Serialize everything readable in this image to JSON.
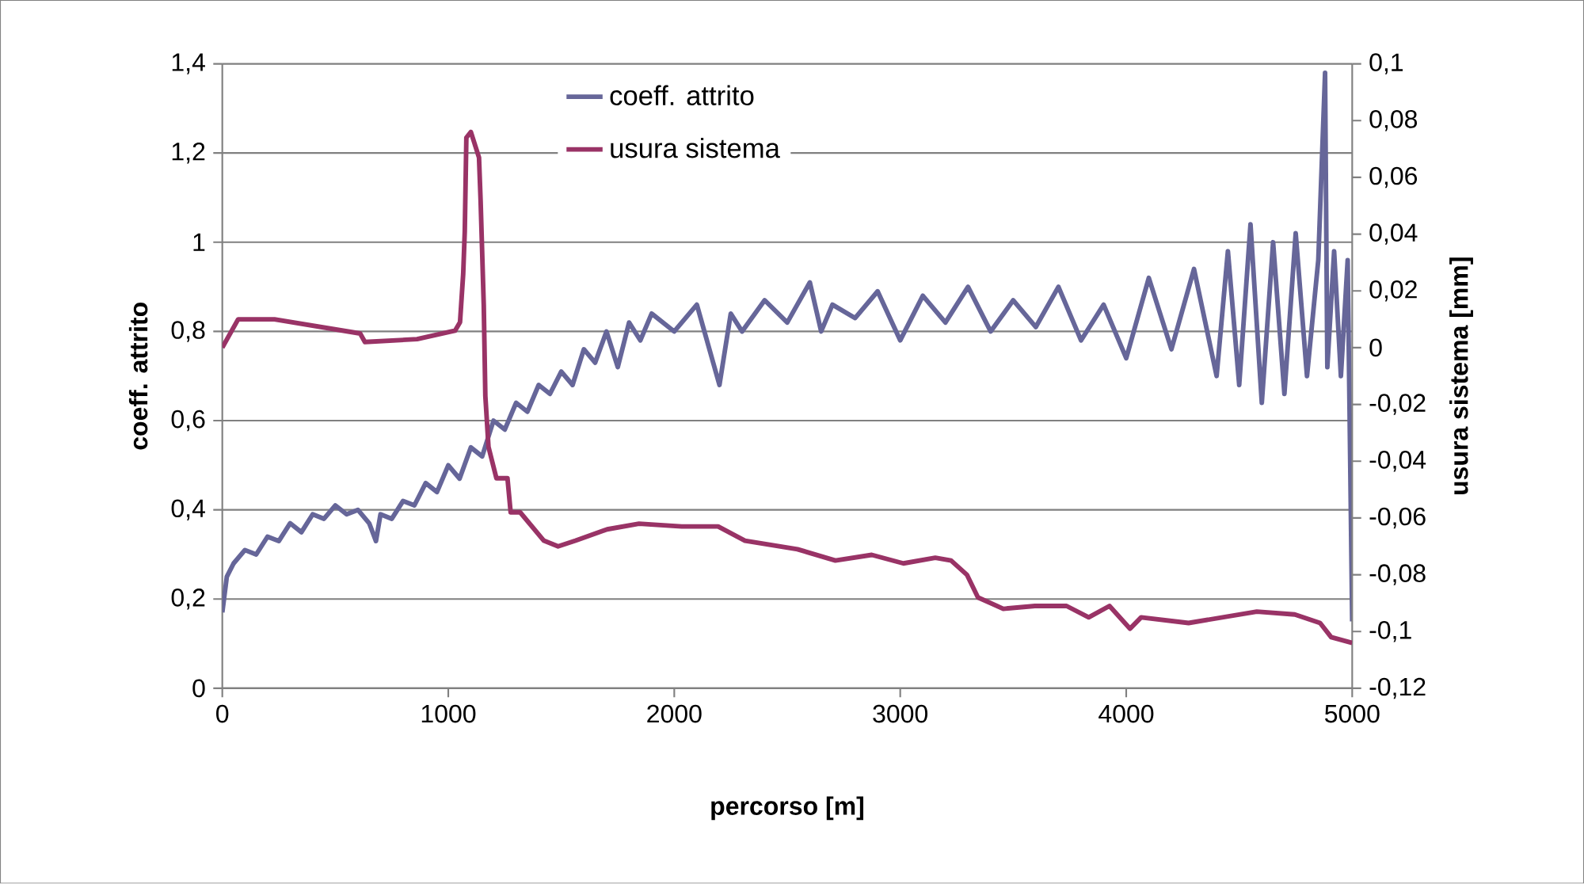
{
  "chart_data": {
    "type": "line",
    "xlabel": "percorso [m]",
    "ylabel": "coeff. attrito",
    "y2label": "usura sistema [mm]",
    "xlim": [
      0,
      5000
    ],
    "xticks": [
      0,
      1000,
      2000,
      3000,
      4000,
      5000
    ],
    "ylim": [
      0,
      1.4
    ],
    "yticks": [
      0,
      {
        "value": 0.2,
        "label": "0,2"
      },
      {
        "value": 0.4,
        "label": "0,4"
      },
      {
        "value": 0.6,
        "label": "0,6"
      },
      {
        "value": 0.8,
        "label": "0,8"
      },
      1,
      {
        "value": 1.2,
        "label": "1,2"
      },
      {
        "value": 1.4,
        "label": "1,4"
      }
    ],
    "y2lim": [
      -0.12,
      0.1
    ],
    "y2ticks": [
      {
        "value": -0.12,
        "label": "-0,12"
      },
      {
        "value": -0.1,
        "label": "-0,1"
      },
      {
        "value": -0.08,
        "label": "-0,08"
      },
      {
        "value": -0.06,
        "label": "-0,06"
      },
      {
        "value": -0.04,
        "label": "-0,04"
      },
      {
        "value": -0.02,
        "label": "-0,02"
      },
      0,
      {
        "value": 0.02,
        "label": "0,02"
      },
      {
        "value": 0.04,
        "label": "0,04"
      },
      {
        "value": 0.06,
        "label": "0,06"
      },
      {
        "value": 0.08,
        "label": "0,08"
      },
      {
        "value": 0.1,
        "label": "0,1"
      }
    ],
    "grid": "y",
    "legend": "top",
    "series": [
      {
        "name": "coeff. attrito",
        "color": "#666699",
        "x": [
          0,
          20,
          50,
          100,
          150,
          200,
          250,
          300,
          350,
          400,
          450,
          500,
          550,
          600,
          650,
          680,
          700,
          750,
          800,
          850,
          900,
          950,
          1000,
          1050,
          1100,
          1150,
          1200,
          1250,
          1300,
          1350,
          1400,
          1450,
          1500,
          1550,
          1600,
          1650,
          1700,
          1750,
          1800,
          1850,
          1900,
          2000,
          2100,
          2200,
          2250,
          2300,
          2400,
          2500,
          2600,
          2650,
          2700,
          2800,
          2900,
          3000,
          3100,
          3200,
          3300,
          3400,
          3500,
          3600,
          3700,
          3800,
          3900,
          4000,
          4100,
          4200,
          4300,
          4400,
          4450,
          4500,
          4550,
          4600,
          4650,
          4700,
          4750,
          4800,
          4850,
          4880,
          4890,
          4920,
          4950,
          4980,
          5000
        ],
        "values": [
          0.17,
          0.25,
          0.28,
          0.31,
          0.3,
          0.34,
          0.33,
          0.37,
          0.35,
          0.39,
          0.38,
          0.41,
          0.39,
          0.4,
          0.37,
          0.33,
          0.39,
          0.38,
          0.42,
          0.41,
          0.46,
          0.44,
          0.5,
          0.47,
          0.54,
          0.52,
          0.6,
          0.58,
          0.64,
          0.62,
          0.68,
          0.66,
          0.71,
          0.68,
          0.76,
          0.73,
          0.8,
          0.72,
          0.82,
          0.78,
          0.84,
          0.8,
          0.86,
          0.68,
          0.84,
          0.8,
          0.87,
          0.82,
          0.91,
          0.8,
          0.86,
          0.83,
          0.89,
          0.78,
          0.88,
          0.82,
          0.9,
          0.8,
          0.87,
          0.81,
          0.9,
          0.78,
          0.86,
          0.74,
          0.92,
          0.76,
          0.94,
          0.7,
          0.98,
          0.68,
          1.04,
          0.64,
          1.0,
          0.66,
          1.02,
          0.7,
          0.96,
          1.38,
          0.72,
          0.98,
          0.7,
          0.96,
          0.15
        ]
      },
      {
        "name": "usura sistema",
        "color": "#993366",
        "axis": "y2",
        "x": [
          0,
          70,
          231,
          610,
          631,
          862,
          1030,
          1052,
          1066,
          1073,
          1080,
          1100,
          1136,
          1143,
          1157,
          1164,
          1178,
          1213,
          1262,
          1276,
          1318,
          1423,
          1486,
          1563,
          1703,
          1844,
          2033,
          2194,
          2313,
          2545,
          2713,
          2874,
          3014,
          3155,
          3225,
          3295,
          3344,
          3456,
          3596,
          3736,
          3834,
          3926,
          4017,
          4066,
          4276,
          4578,
          4746,
          4858,
          4907,
          5000
        ],
        "values": [
          0.0,
          0.01,
          0.01,
          0.005,
          0.002,
          0.003,
          0.006,
          0.009,
          0.026,
          0.041,
          0.074,
          0.076,
          0.067,
          0.052,
          0.015,
          -0.017,
          -0.035,
          -0.046,
          -0.046,
          -0.058,
          -0.058,
          -0.068,
          -0.07,
          -0.068,
          -0.064,
          -0.062,
          -0.063,
          -0.063,
          -0.068,
          -0.071,
          -0.075,
          -0.073,
          -0.076,
          -0.074,
          -0.075,
          -0.08,
          -0.088,
          -0.092,
          -0.091,
          -0.091,
          -0.095,
          -0.091,
          -0.099,
          -0.095,
          -0.097,
          -0.093,
          -0.094,
          -0.097,
          -0.102,
          -0.104
        ]
      }
    ]
  }
}
